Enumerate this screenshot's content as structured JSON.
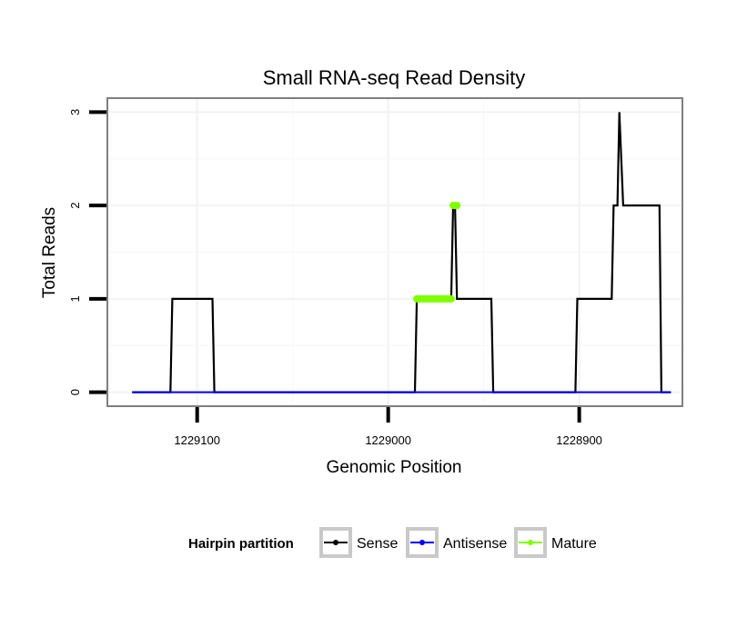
{
  "chart_data": {
    "type": "line",
    "title": "Small RNA-seq Read Density",
    "xlabel": "Genomic Position",
    "ylabel": "Total Reads",
    "xlim": [
      1229147,
      1228846
    ],
    "ylim": [
      -0.15,
      3.15
    ],
    "x_reversed": true,
    "x_ticks": [
      1229100,
      1229000,
      1228900
    ],
    "x_tick_labels": [
      "1229100",
      "1229000",
      "1228900"
    ],
    "y_ticks": [
      0,
      1,
      2,
      3
    ],
    "y_tick_labels": [
      "0",
      "1",
      "2",
      "3"
    ],
    "grid": true,
    "legend": {
      "title": "Hairpin partition",
      "position": "bottom",
      "entries": [
        "Sense",
        "Antisense",
        "Mature"
      ]
    },
    "series": [
      {
        "name": "Sense",
        "color": "#000000",
        "points": [
          [
            1229134,
            0
          ],
          [
            1229114,
            0
          ],
          [
            1229113,
            1
          ],
          [
            1229092,
            1
          ],
          [
            1229091,
            0
          ],
          [
            1228986,
            0
          ],
          [
            1228985,
            1
          ],
          [
            1228967,
            1
          ],
          [
            1228966,
            2
          ],
          [
            1228965,
            2
          ],
          [
            1228964,
            1
          ],
          [
            1228946,
            1
          ],
          [
            1228945,
            0
          ],
          [
            1228902,
            0
          ],
          [
            1228901,
            1
          ],
          [
            1228883,
            1
          ],
          [
            1228882,
            2
          ],
          [
            1228880,
            2
          ],
          [
            1228879,
            3
          ],
          [
            1228877,
            2
          ],
          [
            1228858,
            2
          ],
          [
            1228857,
            0
          ],
          [
            1228852,
            0
          ]
        ]
      },
      {
        "name": "Antisense",
        "color": "#0000ff",
        "points": [
          [
            1229134,
            0
          ],
          [
            1228852,
            0
          ]
        ]
      },
      {
        "name": "Mature",
        "color": "#7fff00",
        "segments": [
          [
            [
              1228985,
              1
            ],
            [
              1228967,
              1
            ]
          ],
          [
            [
              1228966,
              2
            ],
            [
              1228964,
              2
            ]
          ]
        ]
      }
    ]
  }
}
